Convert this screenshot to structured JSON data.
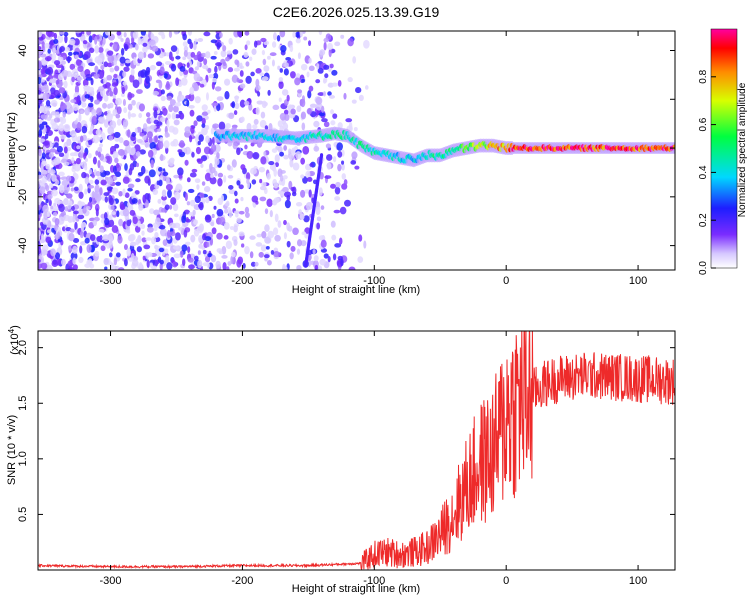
{
  "chart_data": [
    {
      "type": "heatmap",
      "title": "C2E6.2026.025.13.39.G19",
      "xlabel": "Height of straight line (km)",
      "ylabel": "Frequency (Hz)",
      "xlim": [
        -355,
        128
      ],
      "ylim": [
        -50,
        48
      ],
      "xticks": [
        -300,
        -200,
        -100,
        0,
        100
      ],
      "yticks": [
        -40,
        -20,
        0,
        20,
        40
      ],
      "colorbar": {
        "label": "Normalized spectral amplitude",
        "ticks": [
          0.0,
          0.2,
          0.4,
          0.6,
          0.8
        ],
        "range": [
          0,
          1
        ]
      },
      "ridge": {
        "x": [
          -220,
          -200,
          -180,
          -160,
          -140,
          -130,
          -120,
          -110,
          -100,
          -90,
          -80,
          -70,
          -60,
          -50,
          -40,
          -30,
          -20,
          -10,
          0,
          10,
          50,
          100,
          128
        ],
        "y": [
          5,
          5,
          5,
          4,
          5,
          6,
          5,
          1,
          -2,
          -3,
          -4,
          -5,
          -3,
          -3,
          -1,
          0,
          1,
          1,
          0,
          0,
          0,
          0,
          0
        ],
        "amplitude": [
          0.35,
          0.4,
          0.4,
          0.4,
          0.45,
          0.5,
          0.45,
          0.5,
          0.45,
          0.45,
          0.4,
          0.4,
          0.45,
          0.5,
          0.5,
          0.6,
          0.7,
          0.75,
          0.85,
          0.95,
          0.95,
          0.95,
          0.95
        ]
      }
    },
    {
      "type": "line",
      "xlabel": "Height of straight line (km)",
      "ylabel": "SNR (10 * v/v)",
      "multiplier": "(x10",
      "multiplier_exp": "4",
      "xlim": [
        -355,
        128
      ],
      "ylim": [
        0,
        2.15
      ],
      "xticks": [
        -300,
        -200,
        -100,
        0,
        100
      ],
      "yticks": [
        0.5,
        1.0,
        1.5,
        2.0
      ],
      "series_color": "#ff2a2a",
      "x": [
        -355,
        -300,
        -250,
        -200,
        -150,
        -110,
        -100,
        -90,
        -80,
        -70,
        -60,
        -50,
        -40,
        -30,
        -25,
        -20,
        -15,
        -10,
        -5,
        0,
        10,
        20,
        30,
        40,
        60,
        80,
        100,
        128
      ],
      "y": [
        0.04,
        0.03,
        0.03,
        0.04,
        0.04,
        0.06,
        0.14,
        0.16,
        0.14,
        0.16,
        0.2,
        0.32,
        0.5,
        0.75,
        0.85,
        0.95,
        1.0,
        1.05,
        1.2,
        1.4,
        1.52,
        1.6,
        1.68,
        1.72,
        1.75,
        1.74,
        1.72,
        1.7
      ]
    }
  ]
}
